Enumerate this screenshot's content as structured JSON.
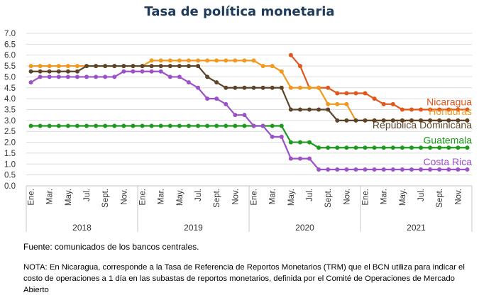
{
  "chart_data": {
    "type": "line",
    "title": "Tasa de política monetaria",
    "xlabel": "",
    "ylabel": "",
    "ylim": [
      0,
      7
    ],
    "y_ticks": [
      "0.0",
      "0.5",
      "1.0",
      "1.5",
      "2.0",
      "2.5",
      "3.0",
      "3.5",
      "4.0",
      "4.5",
      "5.0",
      "5.5",
      "6.0",
      "6.5",
      "7.0"
    ],
    "x_tick_labels": [
      "Ene.",
      "Mar.",
      "May.",
      "Jul.",
      "Sept.",
      "Nov.",
      "Ene.",
      "Mar.",
      "May.",
      "Jul.",
      "Sept.",
      "Nov.",
      "Ene.",
      "Mar.",
      "May.",
      "Jul.",
      "Sept.",
      "Nov.",
      "Ene.",
      "Mar.",
      "May.",
      "Jul.",
      "Sept.",
      "Nov."
    ],
    "years": [
      "2018",
      "2019",
      "2020",
      "2021"
    ],
    "grid": true,
    "series": [
      {
        "name": "Nicaragua",
        "color": "#e0561b",
        "start_index": 28,
        "values": [
          6.0,
          5.5,
          4.5,
          4.5,
          4.5,
          4.25,
          4.25,
          4.25,
          4.25,
          4.0,
          3.75,
          3.75,
          3.5,
          3.5,
          3.5,
          3.5,
          3.5,
          3.5,
          3.5,
          3.5
        ]
      },
      {
        "name": "Honduras",
        "color": "#f0991e",
        "start_index": 0,
        "values": [
          5.5,
          5.5,
          5.5,
          5.5,
          5.5,
          5.5,
          5.5,
          5.5,
          5.5,
          5.5,
          5.5,
          5.5,
          5.5,
          5.75,
          5.75,
          5.75,
          5.75,
          5.75,
          5.75,
          5.75,
          5.75,
          5.75,
          5.75,
          5.75,
          5.75,
          5.5,
          5.5,
          5.25,
          4.5,
          4.5,
          4.5,
          4.5,
          3.75,
          3.75,
          3.75,
          3.0,
          3.0,
          3.0,
          3.0,
          3.0,
          3.0,
          3.0,
          3.0,
          3.0,
          3.0,
          3.0,
          3.0,
          3.0
        ]
      },
      {
        "name": "República Dominicana",
        "color": "#5b4428",
        "start_index": 0,
        "values": [
          5.25,
          5.25,
          5.25,
          5.25,
          5.25,
          5.25,
          5.5,
          5.5,
          5.5,
          5.5,
          5.5,
          5.5,
          5.5,
          5.5,
          5.5,
          5.5,
          5.5,
          5.5,
          5.5,
          5.0,
          4.75,
          4.5,
          4.5,
          4.5,
          4.5,
          4.5,
          4.5,
          4.5,
          3.5,
          3.5,
          3.5,
          3.5,
          3.5,
          3.0,
          3.0,
          3.0,
          3.0,
          3.0,
          3.0,
          3.0,
          3.0,
          3.0,
          3.0,
          3.0,
          3.0,
          3.0,
          3.0,
          3.0
        ]
      },
      {
        "name": "Guatemala",
        "color": "#1d9a1d",
        "start_index": 0,
        "values": [
          2.75,
          2.75,
          2.75,
          2.75,
          2.75,
          2.75,
          2.75,
          2.75,
          2.75,
          2.75,
          2.75,
          2.75,
          2.75,
          2.75,
          2.75,
          2.75,
          2.75,
          2.75,
          2.75,
          2.75,
          2.75,
          2.75,
          2.75,
          2.75,
          2.75,
          2.75,
          2.75,
          2.75,
          2.0,
          2.0,
          2.0,
          1.75,
          1.75,
          1.75,
          1.75,
          1.75,
          1.75,
          1.75,
          1.75,
          1.75,
          1.75,
          1.75,
          1.75,
          1.75,
          1.75,
          1.75,
          1.75,
          1.75
        ]
      },
      {
        "name": "Costa Rica",
        "color": "#9b51c8",
        "start_index": 0,
        "values": [
          4.75,
          5.0,
          5.0,
          5.0,
          5.0,
          5.0,
          5.0,
          5.0,
          5.0,
          5.0,
          5.25,
          5.25,
          5.25,
          5.25,
          5.25,
          5.0,
          5.0,
          4.75,
          4.5,
          4.0,
          4.0,
          3.75,
          3.25,
          3.25,
          2.75,
          2.75,
          2.25,
          2.25,
          1.25,
          1.25,
          1.25,
          0.75,
          0.75,
          0.75,
          0.75,
          0.75,
          0.75,
          0.75,
          0.75,
          0.75,
          0.75,
          0.75,
          0.75,
          0.75,
          0.75,
          0.75,
          0.75,
          0.75
        ]
      }
    ]
  },
  "source": "Fuente: comunicados de los bancos centrales.",
  "note": "NOTA: En Nicaragua, corresponde a la Tasa de Referencia de Reportos Monetarios (TRM) que el BCN utiliza para indicar el costo de operaciones a 1 día en las subastas de reportos monetarios, definida por el Comité de Operaciones de Mercado Abierto"
}
